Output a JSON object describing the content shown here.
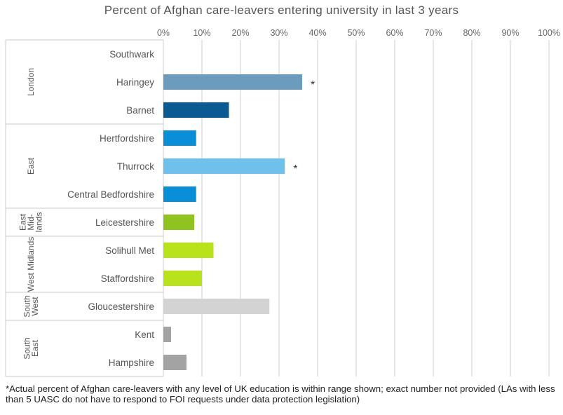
{
  "chart_data": {
    "type": "bar",
    "orientation": "horizontal",
    "title": "Percent of Afghan care-leavers entering university in last 3 years",
    "xlim": [
      0,
      100
    ],
    "x_ticks": [
      "0%",
      "10%",
      "20%",
      "30%",
      "40%",
      "50%",
      "60%",
      "70%",
      "80%",
      "90%",
      "100%"
    ],
    "grid": "vertical",
    "categories": [
      "Southwark",
      "Haringey",
      "Barnet",
      "Hertfordshire",
      "Thurrock",
      "Central Bedfordshire",
      "Leicestershire",
      "Solihull Met",
      "Staffordshire",
      "Gloucestershire",
      "Kent",
      "Hampshire"
    ],
    "values": [
      0,
      36,
      17,
      8.5,
      31.5,
      8.5,
      8,
      13,
      10,
      27.5,
      2,
      6
    ],
    "colors": [
      "#6b9bbd",
      "#6b9bbd",
      "#0b5b93",
      "#0a8fd6",
      "#6ec1ea",
      "#0a8fd6",
      "#8fc31f",
      "#b8e21a",
      "#b8e21a",
      "#d3d3d3",
      "#a3a3a3",
      "#a3a3a3"
    ],
    "markers": [
      "",
      "*",
      "",
      "",
      "*",
      "",
      "",
      "",
      "",
      "",
      "",
      ""
    ],
    "groups": [
      {
        "label": "London",
        "rows": [
          0,
          2
        ]
      },
      {
        "label": "East",
        "rows": [
          3,
          5
        ]
      },
      {
        "label": "East Mid-lands",
        "lines": [
          "East",
          "Mid-",
          "lands"
        ],
        "rows": [
          6,
          6
        ]
      },
      {
        "label": "West Midlands",
        "rows": [
          7,
          8
        ]
      },
      {
        "label": "South West",
        "lines": [
          "South",
          "West"
        ],
        "rows": [
          9,
          9
        ]
      },
      {
        "label": "South East",
        "lines": [
          "South",
          "East"
        ],
        "rows": [
          10,
          11
        ]
      }
    ]
  },
  "footnote": "*Actual percent of Afghan care-leavers with any level of UK education is within range shown; exact number not provided (LAs with less than 5 UASC do not have to respond to FOI requests under data protection legislation)"
}
